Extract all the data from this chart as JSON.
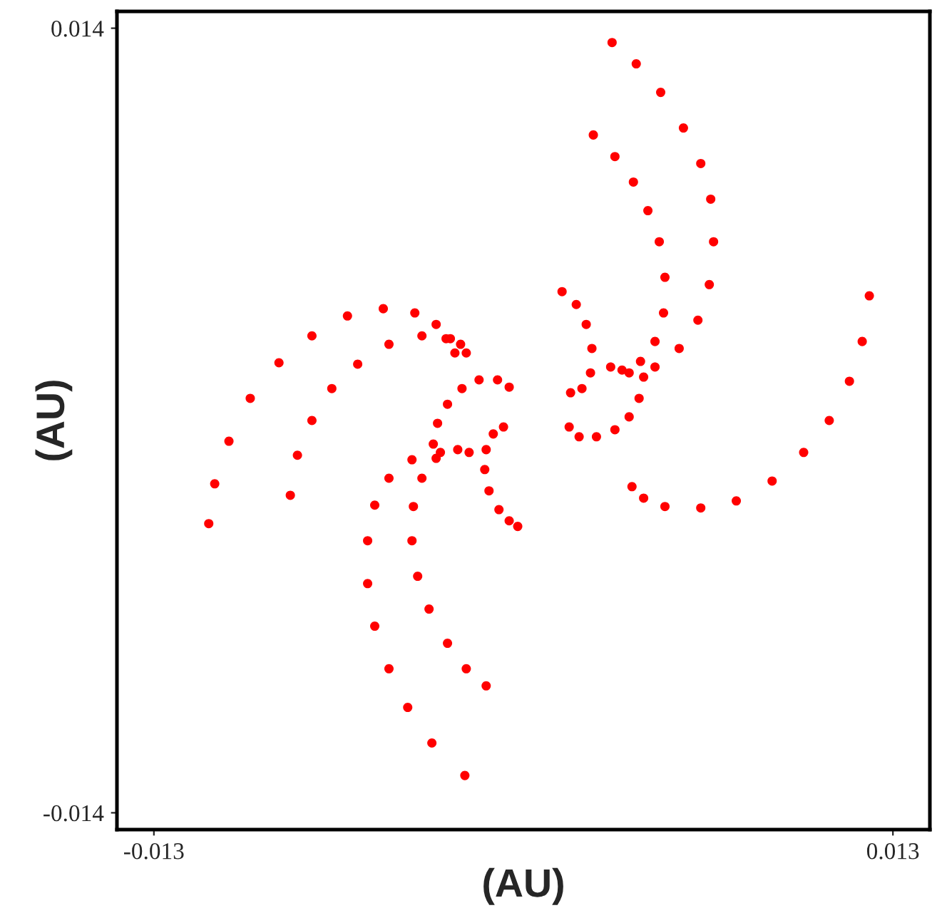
{
  "chart_data": {
    "type": "scatter",
    "xlabel": "(AU)",
    "ylabel": "(AU)",
    "xlim": [
      -0.0143,
      0.0143
    ],
    "ylim": [
      -0.0146,
      0.0146
    ],
    "xticks": [
      -0.013,
      0.013
    ],
    "yticks": [
      -0.014,
      0.014
    ],
    "grid": false,
    "legend": false,
    "marker": "circle",
    "series": [
      {
        "color": "#ff0000",
        "x": [
          0.00312,
          0.00397,
          0.00483,
          0.00563,
          0.00624,
          0.00659,
          0.00669,
          0.00654,
          0.00614,
          0.00548,
          0.00463,
          0.00372
        ],
        "values": [
          0.01349,
          0.01273,
          0.01171,
          0.01044,
          0.00917,
          0.0079,
          0.00638,
          0.00485,
          0.00358,
          0.00257,
          0.00191,
          0.0017
        ]
      },
      {
        "color": "#ff0000",
        "x": [
          0.00246,
          0.00322,
          0.00387,
          0.00438,
          0.00478,
          0.00498,
          0.00493,
          0.00463,
          0.00412,
          0.00347,
          0.00307
        ],
        "values": [
          0.01019,
          0.00942,
          0.00851,
          0.00749,
          0.00638,
          0.00511,
          0.00384,
          0.00282,
          0.00211,
          0.0018,
          0.00191
        ]
      },
      {
        "color": "#ff0000",
        "x": [
          0.01217,
          0.01192,
          0.01147,
          0.01076,
          0.00986,
          0.00875,
          0.00749,
          0.00624,
          0.00498,
          0.00423,
          0.00382
        ],
        "values": [
          0.00445,
          0.00282,
          0.0014,
          0.0,
          -0.00114,
          -0.00216,
          -0.00287,
          -0.00312,
          -0.00307,
          -0.00277,
          -0.00236
        ]
      },
      {
        "color": "#ff0000",
        "x": [
          0.00136,
          0.00186,
          0.00221,
          0.00241,
          0.00236,
          0.00206,
          0.00166
        ],
        "values": [
          0.0046,
          0.00414,
          0.00343,
          0.00257,
          0.0017,
          0.00114,
          0.00099
        ]
      },
      {
        "color": "#ff0000",
        "x": [
          0.00423,
          0.00407,
          0.00372,
          0.00322,
          0.00257,
          0.00196,
          0.00161
        ],
        "values": [
          0.00155,
          0.00079,
          0.00013,
          -0.00033,
          -0.00058,
          -0.00058,
          -0.00023
        ]
      },
      {
        "color": "#ff0000",
        "x": [
          -0.01107,
          -0.01086,
          -0.01036,
          -0.00961,
          -0.0086,
          -0.00744,
          -0.00619,
          -0.00493,
          -0.00382,
          -0.00307,
          -0.00257,
          -0.00241
        ],
        "values": [
          -0.00368,
          -0.00226,
          -0.00074,
          0.00079,
          0.00206,
          0.00302,
          0.00373,
          0.00399,
          0.00384,
          0.00343,
          0.00292,
          0.00241
        ]
      },
      {
        "color": "#ff0000",
        "x": [
          -0.0082,
          -0.00795,
          -0.00744,
          -0.00674,
          -0.00583,
          -0.00473,
          -0.00357,
          -0.00272,
          -0.00221,
          -0.00201
        ],
        "values": [
          -0.00267,
          -0.00124,
          0.0,
          0.00114,
          0.00201,
          0.00272,
          0.00302,
          0.00292,
          0.00272,
          0.00241
        ]
      },
      {
        "color": "#ff0000",
        "x": [
          -0.00317,
          -0.00302,
          -0.00267,
          -0.00216,
          -0.00156,
          -0.00091,
          -0.0005
        ],
        "values": [
          -0.00084,
          -0.0001,
          0.00058,
          0.00114,
          0.00145,
          0.00145,
          0.00119
        ]
      },
      {
        "color": "#ff0000",
        "x": [
          -0.0007,
          -0.00106,
          -0.00131,
          -0.00136,
          -0.00121,
          -0.00086,
          -0.0005,
          -0.0002
        ],
        "values": [
          -0.00023,
          -0.00048,
          -0.00104,
          -0.00175,
          -0.00251,
          -0.00318,
          -0.00358,
          -0.00378
        ]
      },
      {
        "color": "#ff0000",
        "x": [
          -0.00191,
          -0.00292,
          -0.00392,
          -0.00473,
          -0.00523,
          -0.00548,
          -0.00548,
          -0.00523,
          -0.00473,
          -0.00407,
          -0.00322,
          -0.00206
        ],
        "values": [
          -0.00114,
          -0.00114,
          -0.0014,
          -0.00206,
          -0.00302,
          -0.00429,
          -0.00582,
          -0.00734,
          -0.00886,
          -0.01024,
          -0.01151,
          -0.01267
        ]
      },
      {
        "color": "#ff0000",
        "x": [
          -0.00231,
          -0.00307,
          -0.00357,
          -0.00387,
          -0.00392,
          -0.00372,
          -0.00332,
          -0.00267,
          -0.00201,
          -0.00131
        ],
        "values": [
          -0.00104,
          -0.00135,
          -0.00206,
          -0.00307,
          -0.00429,
          -0.00556,
          -0.00673,
          -0.00795,
          -0.00886,
          -0.00947
        ]
      }
    ]
  }
}
